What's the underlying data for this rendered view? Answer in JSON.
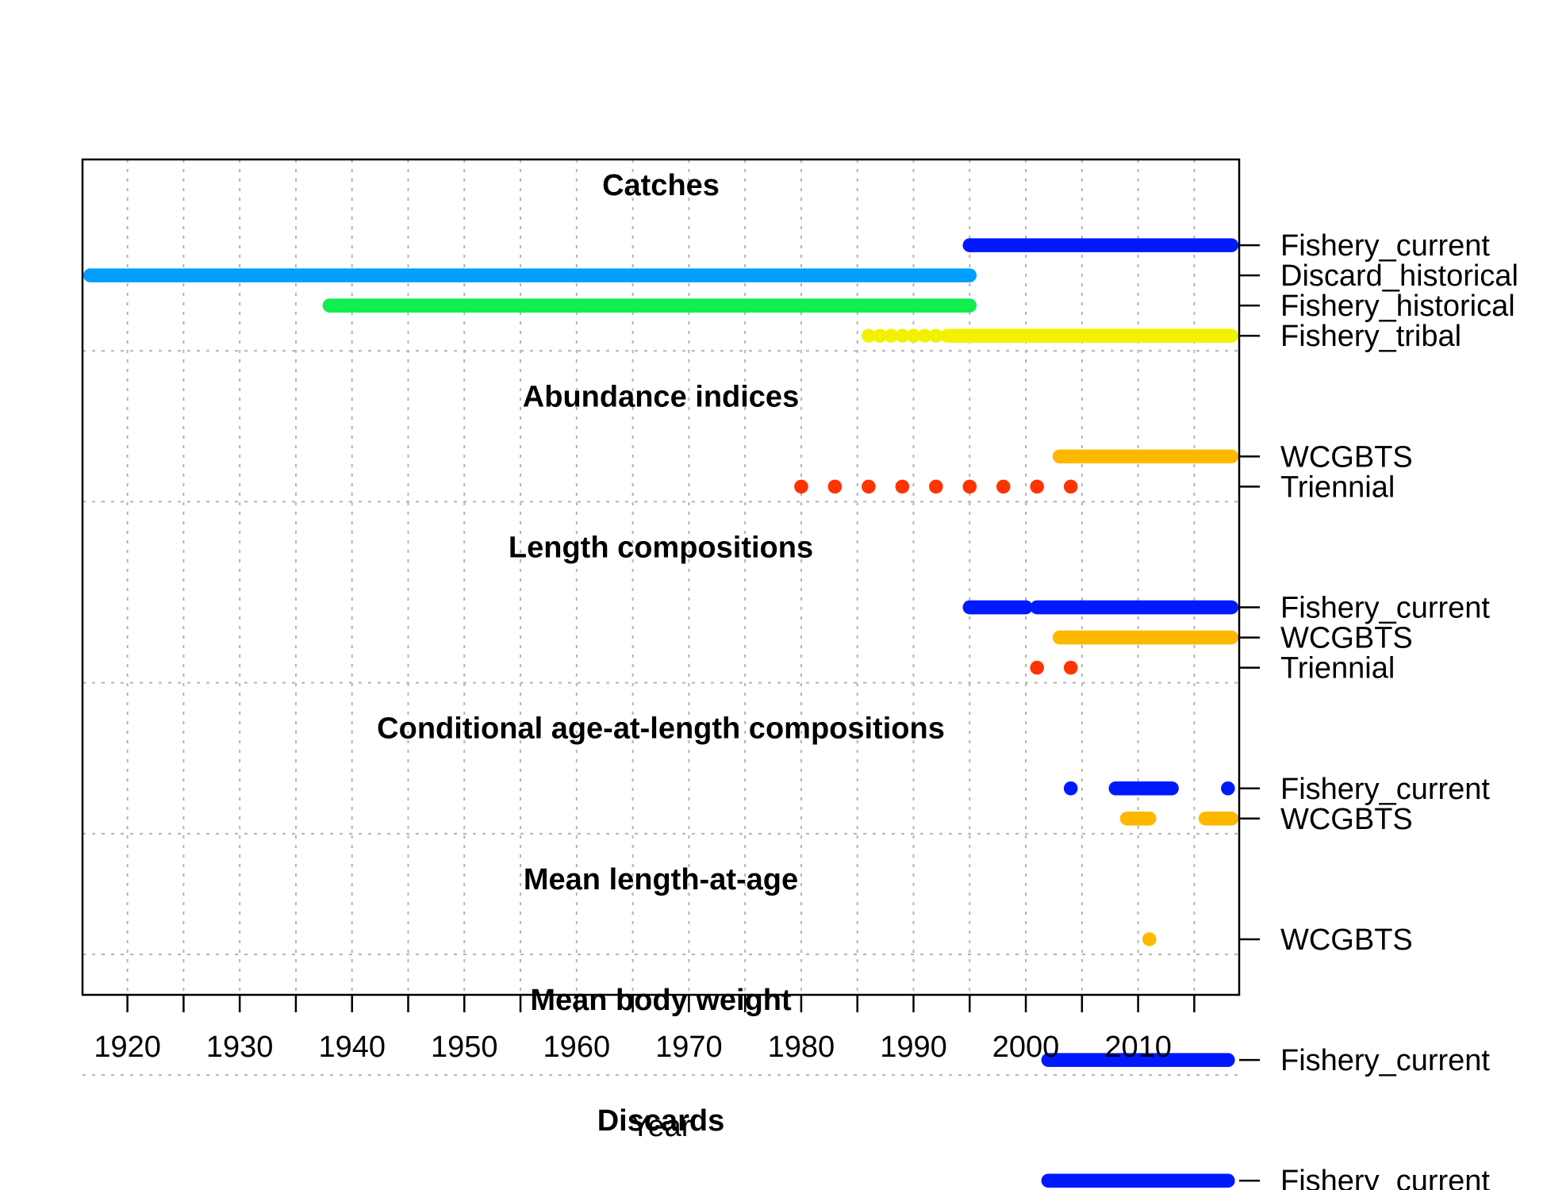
{
  "chart_data": {
    "type": "timeline",
    "xlabel": "Year",
    "xlim": [
      1916,
      2019
    ],
    "x_major_ticks": [
      1920,
      1930,
      1940,
      1950,
      1960,
      1970,
      1980,
      1990,
      2000,
      2010
    ],
    "x_minor_ticks": [
      1925,
      1935,
      1945,
      1955,
      1965,
      1975,
      1985,
      1995,
      2005,
      2015
    ],
    "grid": true,
    "sections": [
      {
        "title": "Catches",
        "rows": [
          {
            "label": "Fishery_current",
            "color": "#0019FF",
            "years": "1995-2019"
          },
          {
            "label": "Discard_historical",
            "color": "#009FFF",
            "years": "1916-1995"
          },
          {
            "label": "Fishery_historical",
            "color": "#10EE50",
            "years": "1938-1995"
          },
          {
            "label": "Fishery_tribal",
            "color": "#F2F200",
            "years": "1986,1987,1988,1989,1990,1991,1992,1993-2019"
          }
        ]
      },
      {
        "title": "Abundance indices",
        "rows": [
          {
            "label": "WCGBTS",
            "color": "#FFB800",
            "years": "2003-2019"
          },
          {
            "label": "Triennial",
            "color": "#FF3300",
            "years": "1980,1983,1986,1989,1992,1995,1998,2001,2004"
          }
        ]
      },
      {
        "title": "Length compositions",
        "rows": [
          {
            "label": "Fishery_current",
            "color": "#0019FF",
            "years": "1995-2000,2001-2019"
          },
          {
            "label": "WCGBTS",
            "color": "#FFB800",
            "years": "2003-2019"
          },
          {
            "label": "Triennial",
            "color": "#FF3300",
            "years": "2001,2004"
          }
        ]
      },
      {
        "title": "Conditional age-at-length compositions",
        "rows": [
          {
            "label": "Fishery_current",
            "color": "#0019FF",
            "years": "2004,2008-2013,2018"
          },
          {
            "label": "WCGBTS",
            "color": "#FFB800",
            "years": "2009-2011,2016-2019"
          }
        ]
      },
      {
        "title": "Mean length-at-age",
        "rows": [
          {
            "label": "WCGBTS",
            "color": "#FFB800",
            "years": "2011"
          }
        ]
      },
      {
        "title": "Mean body weight",
        "rows": [
          {
            "label": "Fishery_current",
            "color": "#0019FF",
            "years": "2002-2018"
          }
        ]
      },
      {
        "title": "Discards",
        "rows": [
          {
            "label": "Fishery_current",
            "color": "#0019FF",
            "years": "2002-2018"
          }
        ]
      }
    ]
  }
}
